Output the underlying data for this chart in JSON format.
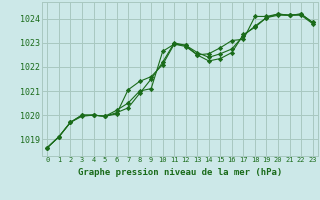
{
  "title": "Graphe pression niveau de la mer (hPa)",
  "bg_color": "#cce8e8",
  "grid_color": "#a8c8c0",
  "line_color": "#1a6b1a",
  "marker_color": "#1a6b1a",
  "xlim": [
    -0.5,
    23.5
  ],
  "ylim": [
    1018.3,
    1024.7
  ],
  "yticks": [
    1019,
    1020,
    1021,
    1022,
    1023,
    1024
  ],
  "xticks": [
    0,
    1,
    2,
    3,
    4,
    5,
    6,
    7,
    8,
    9,
    10,
    11,
    12,
    13,
    14,
    15,
    16,
    17,
    18,
    19,
    20,
    21,
    22,
    23
  ],
  "series": [
    [
      1018.65,
      1019.1,
      1019.7,
      1020.0,
      1020.0,
      1019.95,
      1020.2,
      1020.5,
      1021.0,
      1021.1,
      1022.65,
      1022.95,
      1022.9,
      1022.5,
      1022.55,
      1022.8,
      1023.1,
      1023.15,
      1024.1,
      1024.1,
      1024.2,
      1024.15,
      1024.2,
      1023.85
    ],
    [
      1018.65,
      1019.1,
      1019.7,
      1020.0,
      1020.0,
      1019.95,
      1020.1,
      1020.3,
      1020.9,
      1021.5,
      1022.2,
      1023.0,
      1022.9,
      1022.6,
      1022.4,
      1022.55,
      1022.75,
      1023.3,
      1023.7,
      1024.05,
      1024.2,
      1024.15,
      1024.2,
      1023.85
    ],
    [
      1018.65,
      1019.1,
      1019.7,
      1019.95,
      1020.0,
      1019.95,
      1020.05,
      1021.05,
      1021.4,
      1021.6,
      1022.1,
      1022.95,
      1022.85,
      1022.5,
      1022.25,
      1022.35,
      1022.6,
      1023.35,
      1023.65,
      1024.05,
      1024.15,
      1024.15,
      1024.15,
      1023.8
    ]
  ]
}
